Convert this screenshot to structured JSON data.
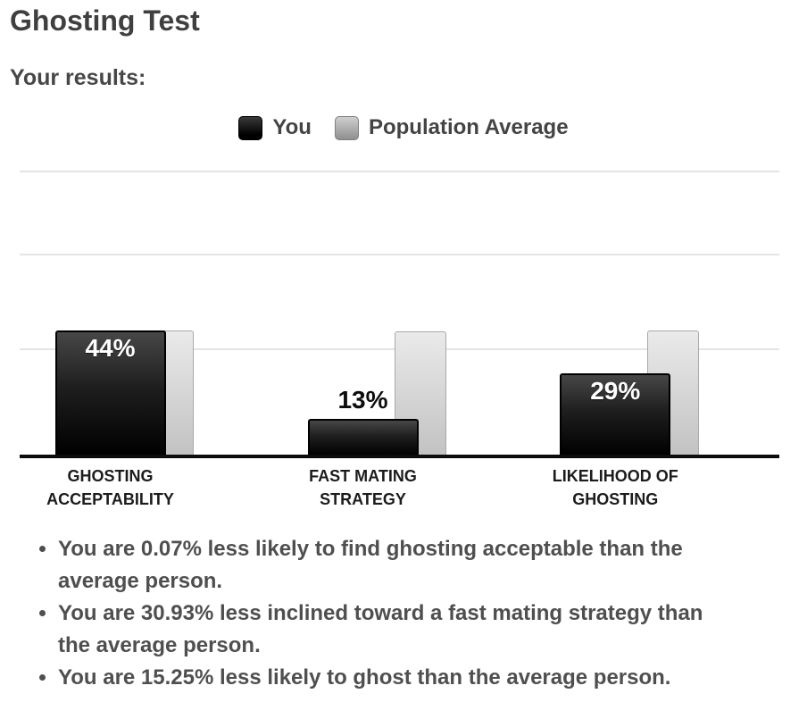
{
  "page": {
    "title": "Ghosting Test",
    "subtitle": "Your results:"
  },
  "legend": {
    "you_label": "You",
    "avg_label": "Population Average"
  },
  "chart_data": {
    "type": "bar",
    "title": "",
    "xlabel": "",
    "ylabel": "",
    "ylim": [
      0,
      100
    ],
    "grid": true,
    "legend_position": "top",
    "categories": [
      "GHOSTING\nACCEPTABILITY",
      "FAST MATING\nSTRATEGY",
      "LIKELIHOOD OF\nGHOSTING"
    ],
    "series": [
      {
        "name": "You",
        "values": [
          44,
          13,
          29
        ],
        "color": "#111111"
      },
      {
        "name": "Population Average",
        "values": [
          44.07,
          43.93,
          44.25
        ],
        "color": "#cccccc"
      }
    ],
    "value_labels": [
      "44%",
      "13%",
      "29%"
    ]
  },
  "summary": {
    "bullets": [
      "You are 0.07% less likely to find ghosting acceptable than the average person.",
      "You are 30.93% less inclined toward a fast mating strategy than the average person.",
      "You are 15.25% less likely to ghost than the average person."
    ]
  },
  "colors": {
    "title_text": "#3f3f3f",
    "body_text": "#4f4f4f",
    "category_text": "#1c1c1c",
    "you_bar": "#111111",
    "avg_bar": "#cccccc",
    "gridline": "#e4e4e4",
    "axis": "#0c0c0c",
    "value_label_inside": "#ffffff",
    "value_label_above": "#0d0d0d"
  }
}
